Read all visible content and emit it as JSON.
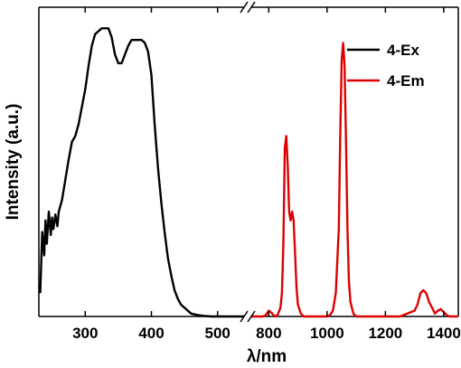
{
  "chart_data": {
    "type": "line",
    "xlabel": "λ/nm",
    "ylabel": "Intensity (a.u.)",
    "broken_x_axis": true,
    "segments": [
      {
        "xlim": [
          230,
          540
        ],
        "ticks": [
          "300",
          "400",
          "500"
        ],
        "tick_values": [
          300,
          400,
          500
        ]
      },
      {
        "xlim": [
          740,
          1450
        ],
        "ticks": [
          "800",
          "1000",
          "1200",
          "1400"
        ],
        "tick_values": [
          800,
          1000,
          1200,
          1400
        ]
      }
    ],
    "ylim": [
      0,
      1.05
    ],
    "legend_position": "top-right",
    "series": [
      {
        "name": "4-Ex",
        "color": "#000000",
        "x": [
          232,
          235,
          238,
          240,
          242,
          245,
          248,
          250,
          252,
          255,
          258,
          260,
          265,
          270,
          275,
          280,
          285,
          290,
          295,
          300,
          305,
          310,
          315,
          320,
          325,
          330,
          335,
          340,
          345,
          350,
          355,
          360,
          365,
          370,
          375,
          380,
          385,
          390,
          395,
          400,
          405,
          410,
          415,
          420,
          425,
          430,
          435,
          440,
          445,
          450,
          460,
          470,
          480,
          490,
          500,
          520,
          540
        ],
        "y": [
          0.08,
          0.29,
          0.21,
          0.33,
          0.25,
          0.36,
          0.28,
          0.34,
          0.3,
          0.35,
          0.31,
          0.36,
          0.4,
          0.47,
          0.54,
          0.6,
          0.62,
          0.66,
          0.72,
          0.78,
          0.86,
          0.93,
          0.97,
          0.98,
          0.99,
          0.99,
          0.99,
          0.96,
          0.9,
          0.87,
          0.87,
          0.9,
          0.93,
          0.95,
          0.95,
          0.95,
          0.95,
          0.94,
          0.91,
          0.83,
          0.66,
          0.51,
          0.39,
          0.29,
          0.2,
          0.14,
          0.09,
          0.06,
          0.04,
          0.03,
          0.01,
          0.005,
          0.002,
          0.0,
          0.0,
          0.0,
          0.0
        ]
      },
      {
        "name": "4-Em",
        "color": "#dd0000",
        "x": [
          740,
          760,
          780,
          790,
          800,
          810,
          820,
          830,
          840,
          845,
          850,
          855,
          860,
          865,
          870,
          875,
          880,
          885,
          890,
          895,
          900,
          910,
          920,
          940,
          960,
          980,
          1000,
          1010,
          1020,
          1030,
          1040,
          1045,
          1050,
          1055,
          1060,
          1065,
          1070,
          1075,
          1080,
          1090,
          1100,
          1120,
          1150,
          1200,
          1250,
          1300,
          1310,
          1320,
          1330,
          1340,
          1350,
          1360,
          1370,
          1380,
          1390,
          1400,
          1410,
          1420,
          1450
        ],
        "y": [
          0.0,
          0.0,
          0.0,
          0.005,
          0.02,
          0.012,
          0.0,
          0.005,
          0.03,
          0.08,
          0.25,
          0.58,
          0.62,
          0.52,
          0.36,
          0.33,
          0.36,
          0.33,
          0.22,
          0.1,
          0.04,
          0.01,
          0.0,
          0.0,
          0.0,
          0.0,
          0.0,
          0.005,
          0.02,
          0.08,
          0.3,
          0.62,
          0.88,
          0.94,
          0.86,
          0.6,
          0.3,
          0.12,
          0.05,
          0.01,
          0.0,
          0.0,
          0.0,
          0.0,
          0.0,
          0.02,
          0.04,
          0.08,
          0.09,
          0.08,
          0.05,
          0.03,
          0.01,
          0.02,
          0.025,
          0.015,
          0.005,
          0.0,
          0.0
        ]
      }
    ]
  }
}
